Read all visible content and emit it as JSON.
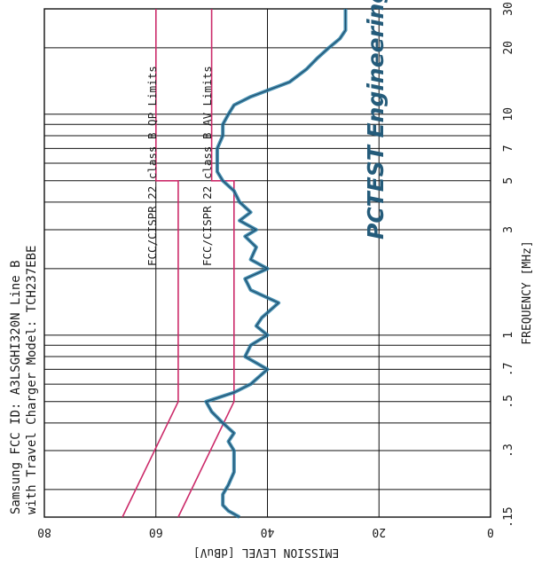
{
  "header": {
    "line1": "Samsung   FCC ID: A3LSGHI320N  Line B",
    "line2": "with Travel Charger Model: TCH237EBE"
  },
  "brand": "PCTEST Engineering Lab.",
  "colors": {
    "grid": "#111111",
    "limit": "#cc2b6a",
    "trace": "#2a7fa6",
    "trace_dark": "#1f4e6e",
    "brand": "#245b7a"
  },
  "chart_data": {
    "type": "line",
    "x_scale": "log",
    "xlabel": "FREQUENCY [MHz]",
    "ylabel": "EMISSION LEVEL [dBuV]",
    "xlim": [
      0.15,
      30
    ],
    "ylim": [
      0,
      80
    ],
    "x_ticks": [
      {
        "v": 0.15,
        "label": ".15"
      },
      {
        "v": 0.3,
        "label": ".3"
      },
      {
        "v": 0.5,
        "label": ".5"
      },
      {
        "v": 0.7,
        "label": ".7"
      },
      {
        "v": 1,
        "label": "1"
      },
      {
        "v": 3,
        "label": "3"
      },
      {
        "v": 5,
        "label": "5"
      },
      {
        "v": 7,
        "label": "7"
      },
      {
        "v": 10,
        "label": "10"
      },
      {
        "v": 20,
        "label": "20"
      },
      {
        "v": 30,
        "label": "30"
      }
    ],
    "y_ticks": [
      {
        "v": 0,
        "label": "0"
      },
      {
        "v": 20,
        "label": "20"
      },
      {
        "v": 40,
        "label": "40"
      },
      {
        "v": 60,
        "label": "60"
      },
      {
        "v": 80,
        "label": "80"
      }
    ],
    "minor_x": [
      0.2,
      0.4,
      0.6,
      0.8,
      0.9,
      2,
      4,
      6,
      8,
      9
    ],
    "grid": true,
    "series": [
      {
        "name": "FCC/CISPR 22 class B QP Limits",
        "kind": "limit",
        "points": [
          [
            0.15,
            66
          ],
          [
            0.5,
            56
          ],
          [
            5,
            56
          ],
          [
            5,
            60
          ],
          [
            30,
            60
          ]
        ]
      },
      {
        "name": "FCC/CISPR 22 class B AV Limits",
        "kind": "limit",
        "points": [
          [
            0.15,
            56
          ],
          [
            0.5,
            46
          ],
          [
            5,
            46
          ],
          [
            5,
            50
          ],
          [
            30,
            50
          ]
        ]
      },
      {
        "name": "Emission",
        "kind": "trace",
        "points": [
          [
            0.15,
            45
          ],
          [
            0.16,
            47
          ],
          [
            0.17,
            48
          ],
          [
            0.19,
            48
          ],
          [
            0.21,
            47
          ],
          [
            0.24,
            46
          ],
          [
            0.27,
            46
          ],
          [
            0.3,
            46
          ],
          [
            0.33,
            47
          ],
          [
            0.36,
            46
          ],
          [
            0.4,
            48
          ],
          [
            0.45,
            50
          ],
          [
            0.5,
            51
          ],
          [
            0.55,
            46
          ],
          [
            0.6,
            43
          ],
          [
            0.7,
            40
          ],
          [
            0.8,
            44
          ],
          [
            0.9,
            43
          ],
          [
            1.0,
            40
          ],
          [
            1.1,
            42
          ],
          [
            1.2,
            41
          ],
          [
            1.4,
            38
          ],
          [
            1.6,
            43
          ],
          [
            1.8,
            44
          ],
          [
            2.0,
            40
          ],
          [
            2.2,
            43
          ],
          [
            2.5,
            42
          ],
          [
            2.8,
            44
          ],
          [
            3.0,
            42
          ],
          [
            3.3,
            45
          ],
          [
            3.6,
            43
          ],
          [
            4.0,
            45
          ],
          [
            4.5,
            46
          ],
          [
            5.0,
            48
          ],
          [
            5.5,
            49
          ],
          [
            6.0,
            49
          ],
          [
            7.0,
            49
          ],
          [
            8.0,
            48
          ],
          [
            9.0,
            48
          ],
          [
            10.0,
            47
          ],
          [
            11.0,
            46
          ],
          [
            12.0,
            43
          ],
          [
            14.0,
            36
          ],
          [
            16.0,
            33
          ],
          [
            18.0,
            31
          ],
          [
            20.0,
            29
          ],
          [
            22.0,
            27
          ],
          [
            24.0,
            26
          ],
          [
            26.0,
            26
          ],
          [
            28.0,
            26
          ],
          [
            30.0,
            26
          ]
        ]
      }
    ]
  },
  "limit_labels": {
    "qp": "FCC/CISPR 22 class B QP Limits",
    "av": "FCC/CISPR 22 class B AV Limits"
  }
}
